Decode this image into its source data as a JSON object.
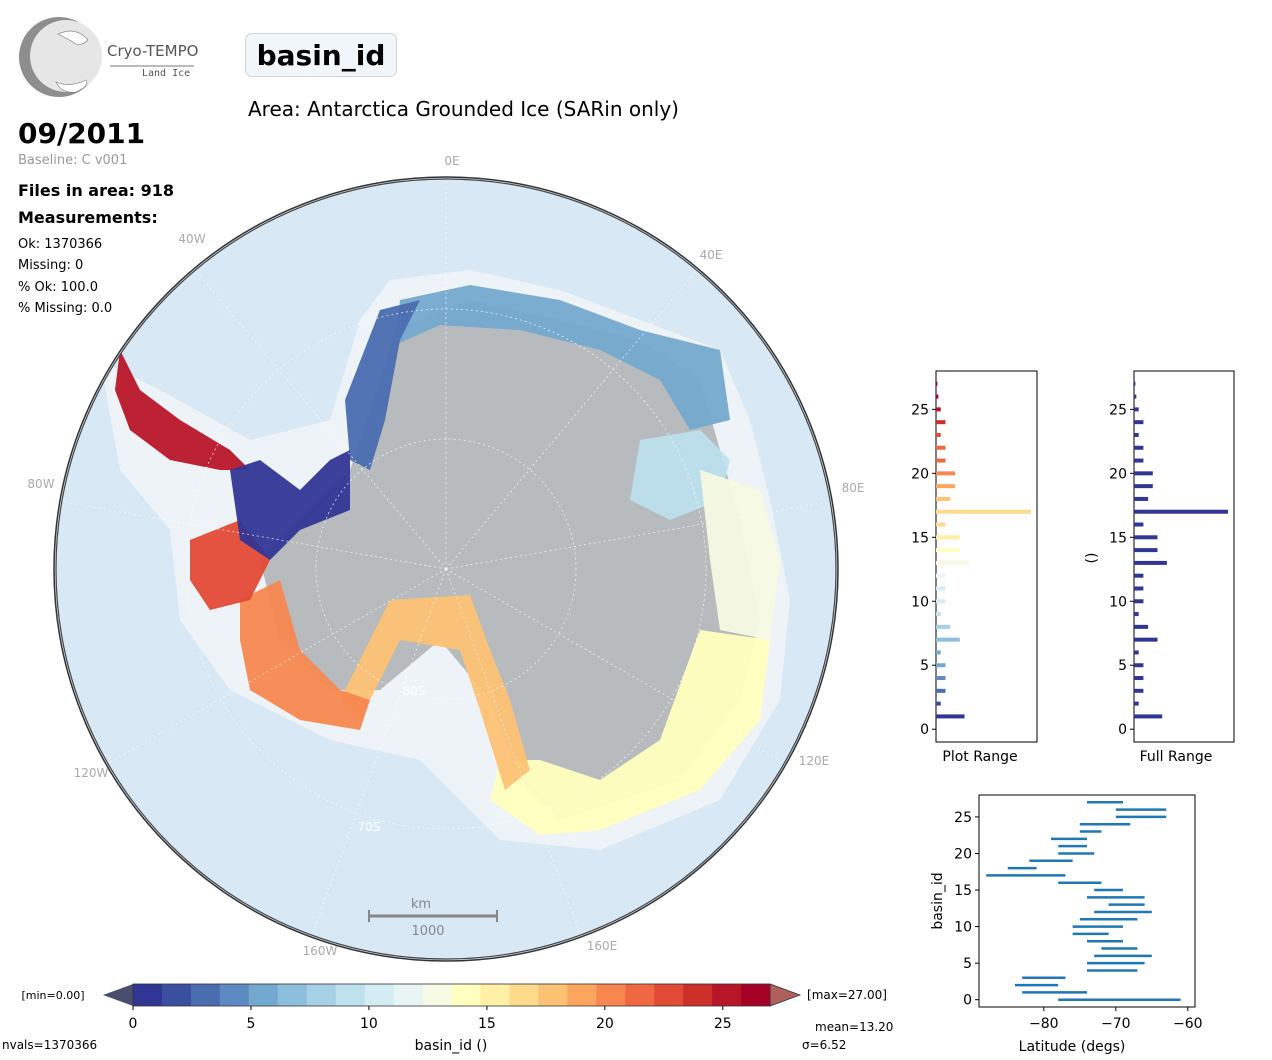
{
  "logo": {
    "name": "Cryo-TEMPO",
    "sub": "Land Ice"
  },
  "title": "basin_id",
  "area": "Area: Antarctica Grounded Ice (SARin only)",
  "date": "09/2011",
  "baseline": "Baseline: C v001",
  "files": "Files in area: 918",
  "measurements_label": "Measurements:",
  "stats": {
    "ok": "Ok: 1370366",
    "missing": "Missing: 0",
    "pct_ok": "% Ok: 100.0",
    "pct_missing": "% Missing: 0.0"
  },
  "map": {
    "lon_labels": {
      "e0": "0E",
      "w40": "40W",
      "e40": "40E",
      "w80": "80W",
      "e80": "80E",
      "w120": "120W",
      "e120": "120E",
      "w160": "160W",
      "e160": "160E"
    },
    "lat_labels": {
      "s80": "80S",
      "s70": "70S"
    },
    "scale": {
      "unit": "km",
      "value": "1000"
    },
    "colors": {
      "ocean": "#d8e8f4",
      "ice": "#b9bcbf",
      "shelf": "#eef3f7"
    }
  },
  "colorbar": {
    "min_label": "[min=0.00]",
    "max_label": "[max=27.00]",
    "ticks": [
      "0",
      "5",
      "10",
      "15",
      "20",
      "25"
    ],
    "label": "basin_id ()",
    "colors": [
      "#313695",
      "#3b4fa0",
      "#4a6db0",
      "#5d8ac0",
      "#74a9cf",
      "#8dbfdc",
      "#a5d0e5",
      "#bde2ee",
      "#d4edf4",
      "#e9f5f5",
      "#f6f9e3",
      "#ffffbf",
      "#fff0a6",
      "#feda8b",
      "#fdc274",
      "#fca55f",
      "#f7874f",
      "#ef6842",
      "#e14a35",
      "#cf2f2a",
      "#b81628",
      "#a50026"
    ]
  },
  "footer": {
    "nvals": "nvals=1370366",
    "mean": "mean=13.20",
    "sigma": "σ=6.52"
  },
  "hist_plot": {
    "xlabel": "Plot Range",
    "yticks": [
      "0",
      "5",
      "10",
      "15",
      "20",
      "25"
    ]
  },
  "hist_full": {
    "xlabel": "Full Range",
    "ylabel": "()",
    "yticks": [
      "0",
      "5",
      "10",
      "15",
      "20",
      "25"
    ]
  },
  "chart_data": [
    {
      "type": "bar",
      "orientation": "horizontal",
      "xlabel": "Plot Range",
      "categories": [
        1,
        2,
        3,
        4,
        5,
        6,
        7,
        8,
        9,
        10,
        11,
        12,
        13,
        14,
        15,
        16,
        17,
        18,
        19,
        20,
        21,
        22,
        23,
        24,
        25,
        26,
        27
      ],
      "values": [
        6,
        1,
        2,
        2,
        2,
        1,
        5,
        3,
        1,
        2,
        2,
        2,
        7,
        5,
        5,
        2,
        20,
        3,
        4,
        4,
        2,
        2,
        1,
        2,
        1,
        0.5,
        0.3
      ],
      "ylim": [
        -1,
        28
      ]
    },
    {
      "type": "bar",
      "orientation": "horizontal",
      "xlabel": "Full Range",
      "ylabel": "()",
      "categories": [
        1,
        2,
        3,
        4,
        5,
        6,
        7,
        8,
        9,
        10,
        11,
        12,
        13,
        14,
        15,
        16,
        17,
        18,
        19,
        20,
        21,
        22,
        23,
        24,
        25,
        26,
        27
      ],
      "values": [
        6,
        1,
        2,
        2,
        2,
        1,
        5,
        3,
        1,
        2,
        2,
        2,
        7,
        5,
        5,
        2,
        20,
        3,
        4,
        4,
        2,
        2,
        1,
        2,
        1,
        0.5,
        0.3
      ],
      "ylim": [
        -1,
        28
      ]
    },
    {
      "type": "range",
      "xlabel": "Latitude (degs)",
      "ylabel": "basin_id",
      "xlim": [
        -89,
        -59
      ],
      "ylim": [
        -1,
        28
      ],
      "xticks": [
        "−80",
        "−70",
        "−60"
      ],
      "yticks": [
        "0",
        "5",
        "10",
        "15",
        "20",
        "25"
      ],
      "series": [
        {
          "id": 0,
          "min": -78,
          "max": -61
        },
        {
          "id": 1,
          "min": -83,
          "max": -74
        },
        {
          "id": 2,
          "min": -84,
          "max": -78
        },
        {
          "id": 3,
          "min": -83,
          "max": -77
        },
        {
          "id": 4,
          "min": -74,
          "max": -67
        },
        {
          "id": 5,
          "min": -74,
          "max": -66
        },
        {
          "id": 6,
          "min": -73,
          "max": -65
        },
        {
          "id": 7,
          "min": -72,
          "max": -67
        },
        {
          "id": 8,
          "min": -74,
          "max": -69
        },
        {
          "id": 9,
          "min": -76,
          "max": -71
        },
        {
          "id": 10,
          "min": -76,
          "max": -69
        },
        {
          "id": 11,
          "min": -75,
          "max": -67
        },
        {
          "id": 12,
          "min": -73,
          "max": -65
        },
        {
          "id": 13,
          "min": -71,
          "max": -66
        },
        {
          "id": 14,
          "min": -74,
          "max": -66
        },
        {
          "id": 15,
          "min": -73,
          "max": -69
        },
        {
          "id": 16,
          "min": -78,
          "max": -72
        },
        {
          "id": 17,
          "min": -88,
          "max": -77
        },
        {
          "id": 18,
          "min": -85,
          "max": -81
        },
        {
          "id": 19,
          "min": -82,
          "max": -76
        },
        {
          "id": 20,
          "min": -78,
          "max": -73
        },
        {
          "id": 21,
          "min": -78,
          "max": -74
        },
        {
          "id": 22,
          "min": -79,
          "max": -74
        },
        {
          "id": 23,
          "min": -75,
          "max": -72
        },
        {
          "id": 24,
          "min": -75,
          "max": -68
        },
        {
          "id": 25,
          "min": -70,
          "max": -63
        },
        {
          "id": 26,
          "min": -70,
          "max": -63
        },
        {
          "id": 27,
          "min": -74,
          "max": -69
        }
      ]
    }
  ]
}
